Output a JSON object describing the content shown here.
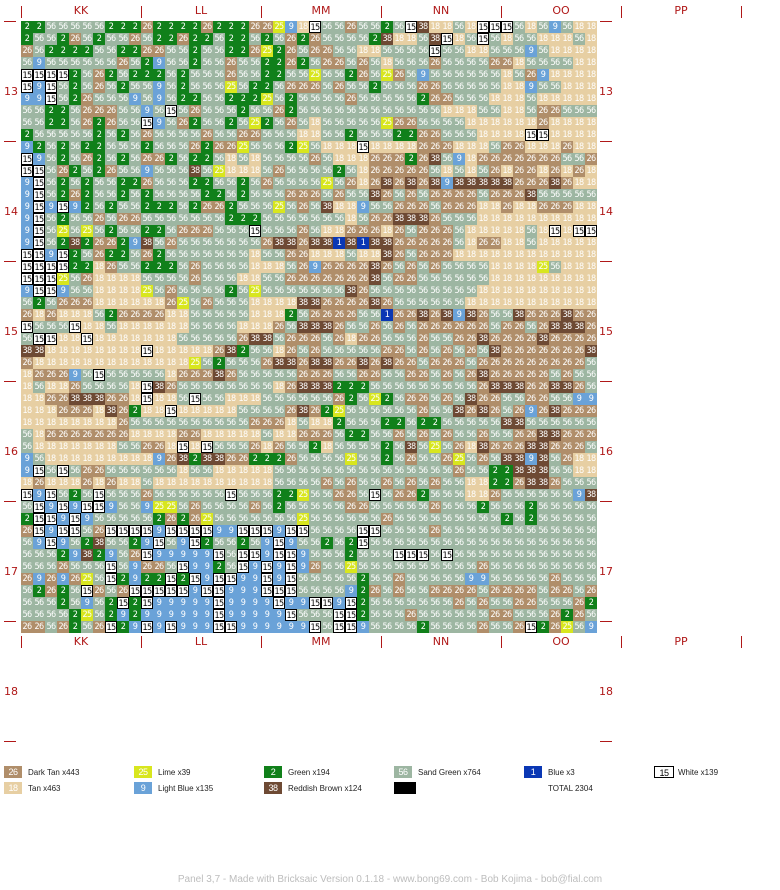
{
  "columns": [
    "KK",
    "LL",
    "MM",
    "NN",
    "OO",
    "PP"
  ],
  "rows": [
    "13",
    "14",
    "15",
    "16",
    "17",
    "18"
  ],
  "colors": {
    "26": {
      "name": "Dark Tan",
      "count": 443,
      "bg": "#b08e6a",
      "fg": "#ffffff"
    },
    "18": {
      "name": "Tan",
      "count": 463,
      "bg": "#e7cfa3",
      "fg": "#ffffff"
    },
    "25": {
      "name": "Lime",
      "count": 39,
      "bg": "#d8e61e",
      "fg": "#ffffff"
    },
    "9": {
      "name": "Light Blue",
      "count": 135,
      "bg": "#6aa2d8",
      "fg": "#ffffff"
    },
    "2": {
      "name": "Green",
      "count": 194,
      "bg": "#10801a",
      "fg": "#ffffff"
    },
    "38": {
      "name": "Reddish Brown",
      "count": 124,
      "bg": "#6e4a34",
      "fg": "#ffffff"
    },
    "56": {
      "name": "Sand Green",
      "count": 764,
      "bg": "#9db6a2",
      "fg": "#ffffff"
    },
    "1": {
      "name": "Blue",
      "count": 3,
      "bg": "#0a37b4",
      "fg": "#ffffff"
    },
    "15": {
      "name": "White",
      "count": 139,
      "bg": "#ffffff",
      "fg": "#000000"
    }
  },
  "legend": [
    {
      "code": "26",
      "label": "Dark Tan",
      "count": "x443"
    },
    {
      "code": "18",
      "label": "Tan",
      "count": "x463"
    },
    {
      "code": "25",
      "label": "Lime",
      "count": "x39"
    },
    {
      "code": "9",
      "label": "Light Blue",
      "count": "x135"
    },
    {
      "code": "2",
      "label": "Green",
      "count": "x194"
    },
    {
      "code": "38",
      "label": "Reddish Brown",
      "count": "x124"
    },
    {
      "code": "56",
      "label": "Sand Green",
      "count": "x764"
    },
    {
      "code": "1",
      "label": "Blue",
      "count": "x3"
    },
    {
      "code": "15",
      "label": "White",
      "count": "x139"
    }
  ],
  "total_text": "TOTAL 2304",
  "footer": "Panel 3,7 - Made with Bricksaic Version 0.1.18 - www.bong69.com - Bob Kojima - bob@fial.com",
  "grid_rows": [
    "2 2 56 56 56 56 56 2 2 2 26 2 2 2 2 26 2 2 2 26 26 25 9 18 15 56 56 26 56 56 2 56 15 38 18 18 56 18 15 15 15 56 18 56 9 56 18 18",
    "2 56 56 2 26 56 2 56 56 26 56 2 2 26 2 2 56 2 2 56 2 56 26 2 26 56 56 56 56 2 38 18 18 56 38 15 18 56 15 56 18 56 56 18 18 18 56 18",
    "26 56 2 2 2 2 56 56 2 2 26 26 56 56 2 56 56 2 2 26 25 2 26 56 26 26 56 56 18 18 56 56 56 56 15 56 56 18 18 56 56 56 9 56 18 18 18 18",
    "56 9 56 56 56 56 56 56 26 56 2 9 56 56 2 56 56 26 56 56 2 2 26 2 56 26 26 56 26 56 18 56 56 56 26 56 56 56 56 26 26 18 56 56 56 56 18 18",
    "15 15 15 15 2 56 26 2 56 2 2 2 56 2 56 56 56 26 56 56 2 2 56 56 25 56 56 2 26 56 25 26 56 9 56 56 56 56 56 56 18 56 26 9 18 18 18 18",
    "15 9 15 56 2 56 26 56 2 56 56 9 56 2 56 56 56 25 56 2 2 56 26 26 26 56 26 56 56 2 56 56 56 26 26 56 56 56 56 56 18 18 9 56 56 18 18 18",
    "9 9 15 56 2 26 56 56 56 9 56 9 56 2 2 56 56 2 2 2 25 56 2 56 56 56 56 26 56 56 56 56 56 2 26 26 56 56 56 18 18 18 56 18 18 18 18 18",
    "56 56 2 2 56 26 26 26 56 56 9 56 15 56 26 56 56 56 2 56 56 26 2 56 56 56 56 56 56 56 56 56 56 56 56 18 18 18 56 56 18 18 56 26 26 56 56 56",
    "56 56 2 2 56 26 2 26 56 56 15 9 56 26 2 56 56 2 56 25 2 56 26 56 18 56 56 56 56 56 25 26 26 56 56 56 56 18 18 18 18 18 18 26 18 18 18 18",
    "2 56 56 56 56 56 2 56 2 56 26 56 56 56 56 26 56 56 26 26 56 56 56 18 18 56 56 2 56 56 56 2 2 26 26 56 56 56 18 18 18 18 15 15 18 18 18 18",
    "9 2 56 2 56 2 2 56 56 56 2 56 56 56 26 2 26 26 25 56 56 56 2 25 56 18 18 18 15 18 18 18 18 26 26 26 18 18 18 56 26 26 18 18 18 26 18 18",
    "15 9 56 2 56 26 2 56 2 56 26 26 2 56 2 2 56 18 56 18 56 56 56 56 26 56 18 18 18 26 26 26 2 26 38 56 9 18 26 26 26 26 26 26 26 56 56 26",
    "15 15 56 26 2 56 2 26 56 56 9 56 56 56 38 56 25 18 18 18 56 26 56 56 56 56 2 56 18 26 26 26 26 26 56 18 56 18 56 26 18 26 26 18 26 18 26 18",
    "9 15 56 2 56 2 56 56 2 2 26 56 56 56 2 2 56 56 2 56 26 56 56 56 56 25 56 26 18 26 38 26 38 26 38 9 38 38 38 38 38 26 26 26 38 26 18 18",
    "9 15 56 2 26 2 56 56 2 56 2 56 56 56 56 2 2 56 2 56 56 56 26 26 26 56 26 56 56 38 26 56 26 56 26 26 26 26 56 26 26 26 38 56 56 56 56 56",
    "9 15 9 15 9 2 56 2 56 56 2 2 2 56 2 26 26 2 56 56 56 25 56 26 56 38 18 18 9 56 56 26 26 26 56 26 26 26 18 18 26 18 18 26 26 26 18 18",
    "9 15 56 2 56 56 26 56 26 26 56 56 56 56 56 56 56 2 2 2 56 56 56 56 56 56 56 18 56 26 26 38 38 38 26 56 56 56 18 18 18 18 18 18 18 18 18 18",
    "9 15 56 25 56 25 56 2 56 56 2 2 56 26 26 26 56 56 56 15 56 56 56 26 56 18 18 26 26 26 18 26 56 26 26 26 56 18 18 18 18 18 56 18 15 18 15 15",
    "9 15 56 2 38 2 26 26 2 9 38 56 26 56 56 56 56 56 56 56 26 38 38 26 38 38 1 38 1 38 38 26 26 26 26 26 56 18 26 26 18 18 56 18 18 18 18 18",
    "15 15 9 15 2 56 26 2 2 56 26 2 56 56 56 56 56 56 56 18 56 56 26 26 18 18 18 56 18 18 38 26 56 26 26 26 18 18 18 18 18 18 18 18 18 18 18 18",
    "15 15 15 15 2 2 18 26 56 56 2 2 2 56 26 56 56 56 56 18 18 18 56 26 9 26 26 26 26 38 26 56 26 56 26 56 56 56 56 18 18 18 18 25 56 18 18 18",
    "15 15 15 25 56 26 18 18 18 18 56 56 56 56 26 56 56 56 18 18 56 56 26 26 26 26 26 26 26 38 56 26 26 56 56 56 56 56 56 18 18 18 18 18 18 18 18 18",
    "9 15 15 9 56 56 18 18 18 18 25 56 26 56 56 56 56 2 56 25 56 56 56 56 56 56 56 38 26 56 56 56 56 56 56 56 56 56 18 18 18 18 18 18 18 18 18 18",
    "56 2 56 26 26 26 18 18 18 18 18 18 26 25 56 26 56 56 56 18 18 18 18 38 38 26 26 26 26 38 26 56 56 56 56 56 56 18 18 18 18 18 18 18 18 18 18 18",
    "26 18 26 18 18 18 56 2 26 26 26 26 18 18 56 56 56 56 56 18 18 18 2 56 26 26 26 26 56 56 1 26 26 38 26 38 9 38 26 56 56 38 26 26 26 38 26 26",
    "15 56 56 56 15 18 18 56 18 18 18 18 18 18 56 56 56 56 18 18 18 26 56 38 38 38 26 56 56 26 56 26 56 26 26 26 26 26 26 56 26 26 56 26 38 38 38 26",
    "56 15 15 18 18 15 18 18 18 18 18 18 18 56 56 56 56 56 26 38 38 56 26 26 26 56 26 18 26 26 56 56 56 26 56 56 26 26 38 26 26 26 26 38 26 26 26 26",
    "38 38 18 18 18 18 18 18 18 18 15 18 18 18 18 18 26 38 2 56 56 18 26 56 26 56 56 56 56 56 26 26 56 26 56 26 56 26 56 38 26 26 26 26 26 26 26 38",
    "26 18 18 18 18 18 18 18 18 18 18 18 18 18 25 56 2 56 56 56 26 38 38 26 38 38 26 26 38 26 38 26 26 56 26 26 26 56 26 26 26 26 26 26 26 26 26 56",
    "18 26 26 26 9 56 15 56 56 56 56 56 18 26 26 26 38 26 56 56 56 56 56 26 26 26 56 56 26 26 56 56 26 26 56 26 56 26 38 26 26 26 26 26 56 26 56 56",
    "18 56 18 18 26 56 56 56 56 18 15 38 26 56 56 56 56 56 56 56 56 18 26 38 38 38 2 2 2 56 56 56 56 56 56 56 56 56 26 38 38 38 26 26 38 38 26 56",
    "18 18 26 26 38 38 38 26 26 18 15 18 18 56 15 56 56 18 18 18 56 56 56 56 56 56 26 2 56 25 2 56 26 26 56 26 56 38 26 26 56 56 26 26 56 56 9 9",
    "18 18 18 26 26 26 18 38 26 2 18 18 15 18 18 18 18 18 56 56 56 56 26 38 26 2 25 56 56 56 56 56 56 26 56 56 38 26 38 26 56 26 9 26 38 26 26 26",
    "18 18 18 18 18 18 18 18 26 56 56 56 56 56 56 56 56 56 56 26 26 26 18 56 18 18 2 56 56 56 2 2 56 2 2 56 56 56 56 56 38 38 56 56 56 56 56 56",
    "56 18 26 26 26 26 26 26 26 18 18 18 18 26 26 18 18 18 18 18 56 18 18 26 26 26 56 2 2 56 56 26 56 26 56 26 56 56 26 56 56 26 26 38 38 26 26 26",
    "56 18 18 18 18 18 18 18 56 56 26 26 18 15 18 15 56 56 56 26 18 26 56 56 2 18 56 56 56 56 2 56 38 56 25 56 26 18 38 26 26 26 38 38 26 26 26 56",
    "9 56 18 18 18 18 18 18 18 18 18 9 26 38 2 38 38 26 26 2 2 2 26 56 56 56 56 25 56 56 2 56 26 56 56 26 25 56 26 56 38 38 9 38 56 26 18 18",
    "9 15 56 15 56 26 26 56 56 56 56 56 56 18 56 56 18 18 18 18 18 56 56 56 56 56 56 56 56 56 56 56 56 56 56 56 26 56 56 2 2 38 38 38 56 56 18 18",
    "18 26 18 18 18 26 18 26 18 18 56 18 18 18 18 18 18 18 18 18 18 56 56 56 56 26 56 26 56 56 26 56 26 56 26 56 56 18 18 2 2 26 38 38 26 56 56 56",
    "15 9 15 56 2 56 15 56 56 56 26 56 56 56 56 56 56 15 56 56 56 2 2 25 56 56 26 26 56 15 56 26 26 2 56 56 56 18 18 26 56 56 56 56 56 56 9 38",
    "56 15 9 15 9 15 15 9 56 56 9 25 25 56 26 56 56 56 56 26 56 2 56 56 56 56 56 26 26 56 56 56 56 56 26 56 56 56 2 56 56 56 2 56 56 56 56 56",
    "2 15 15 9 15 9 56 56 56 56 56 2 26 2 26 25 56 56 56 56 56 56 56 25 56 56 56 56 56 56 26 56 56 56 56 56 56 56 56 56 2 56 2 56 56 56 56 56",
    "26 15 9 15 15 56 26 15 15 15 15 9 15 15 15 15 9 9 15 15 15 9 15 15 56 56 56 56 15 15 56 56 56 56 26 56 56 56 56 56 56 56 56 56 56 56 56 56",
    "56 9 15 9 56 2 38 56 56 2 9 15 56 9 15 2 56 56 2 56 9 15 9 56 56 2 56 2 15 56 56 56 56 56 56 56 56 56 56 56 56 56 56 56 56 56 56 56",
    "56 56 56 2 9 38 2 9 56 26 15 9 9 9 9 9 15 56 15 15 9 15 15 9 56 56 56 2 56 56 56 15 15 15 56 15 56 56 56 56 56 56 56 56 56 56 56 56",
    "56 56 56 26 56 56 56 15 56 9 26 26 56 15 9 9 2 56 15 9 15 9 15 9 26 56 56 25 56 56 56 56 56 56 56 56 56 56 26 56 56 56 56 56 56 56 56 56",
    "26 9 26 9 26 25 56 15 2 9 2 2 15 2 15 9 15 15 9 9 15 9 15 56 56 56 56 56 2 56 56 26 56 56 56 56 56 9 9 56 56 56 56 56 26 56 56 56",
    "56 2 26 2 56 15 26 56 26 15 15 15 15 15 9 15 15 9 9 9 15 15 15 56 56 56 56 9 2 26 56 26 56 56 26 26 26 26 56 26 26 26 26 56 26 26 56 26",
    "56 56 56 2 56 9 56 2 15 2 15 9 9 9 9 9 15 9 9 9 9 15 9 9 15 15 9 15 2 56 56 56 56 56 56 56 26 56 26 56 56 26 26 56 56 56 26 2",
    "56 56 56 56 2 25 56 2 9 2 9 9 9 9 9 9 15 9 9 9 9 9 15 56 56 56 15 15 2 56 56 56 26 56 56 56 56 56 56 26 26 56 56 56 26 2 26 56",
    "26 26 56 26 2 56 26 15 2 9 15 9 15 9 9 9 15 15 9 9 9 9 9 9 15 56 15 15 9 56 56 56 56 2 56 56 56 56 26 56 56 26 15 2 26 25 56 9"
  ]
}
